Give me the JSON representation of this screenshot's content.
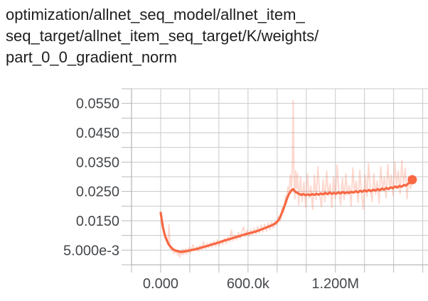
{
  "title": {
    "full": "optimization/allnet_seq_model/allnet_item_seq_target/allnet_item_seq_target/K/weights/part_0_0_gradient_norm",
    "lines": [
      "optimization/allnet_seq_model/allnet_item_",
      "seq_target/allnet_item_seq_target/K/weights/",
      "part_0_0_gradient_norm"
    ]
  },
  "colors": {
    "line": "#f76843",
    "raw_opacity": 0.25,
    "grid": "#c9c9c9",
    "axis": "#b9b9b9",
    "tick_label": "#45484c",
    "title_text": "#1e1e1e"
  },
  "chart_data": {
    "type": "line",
    "title": "optimization/allnet_seq_model/allnet_item_seq_target/allnet_item_seq_target/K/weights/part_0_0_gradient_norm",
    "xlabel": "",
    "ylabel": "",
    "x_units": "training steps (values stored in thousands)",
    "xlim_k": [
      -200,
      1836
    ],
    "ylim": [
      0,
      0.06
    ],
    "grid": {
      "x_step_k": 200,
      "y_step": 0.005,
      "visible": true
    },
    "legend": "none",
    "x_ticks": [
      {
        "step_k": 0,
        "label": "0.000"
      },
      {
        "step_k": 600,
        "label": "600.0k"
      },
      {
        "step_k": 1200,
        "label": "1.200M"
      }
    ],
    "y_ticks": [
      {
        "value": 0.005,
        "label": "5.000e-3"
      },
      {
        "value": 0.015,
        "label": "0.0150"
      },
      {
        "value": 0.025,
        "label": "0.0250"
      },
      {
        "value": 0.035,
        "label": "0.0350"
      },
      {
        "value": 0.045,
        "label": "0.0450"
      },
      {
        "value": 0.055,
        "label": "0.0550"
      }
    ],
    "final_point": {
      "step_k": 1728,
      "value": 0.029
    },
    "series": [
      {
        "name": "raw",
        "role": "unsmoothed original data",
        "opacity": 0.25,
        "width": 2,
        "points": [
          [
            0,
            0.0177
          ],
          [
            6,
            0.015
          ],
          [
            12,
            0.0131
          ],
          [
            18,
            0.0118
          ],
          [
            24,
            0.0105
          ],
          [
            30,
            0.0094
          ],
          [
            36,
            0.0088
          ],
          [
            42,
            0.0078
          ],
          [
            48,
            0.007
          ],
          [
            58,
            0.0136
          ],
          [
            64,
            0.0062
          ],
          [
            70,
            0.0052
          ],
          [
            76,
            0.0058
          ],
          [
            82,
            0.0045
          ],
          [
            88,
            0.0052
          ],
          [
            94,
            0.0038
          ],
          [
            100,
            0.005
          ],
          [
            106,
            0.0042
          ],
          [
            112,
            0.005
          ],
          [
            118,
            0.0034
          ],
          [
            124,
            0.0048
          ],
          [
            130,
            0.0026
          ],
          [
            136,
            0.0046
          ],
          [
            142,
            0.0036
          ],
          [
            148,
            0.0052
          ],
          [
            154,
            0.0034
          ],
          [
            160,
            0.005
          ],
          [
            166,
            0.004
          ],
          [
            172,
            0.0055
          ],
          [
            178,
            0.0036
          ],
          [
            184,
            0.0052
          ],
          [
            190,
            0.0042
          ],
          [
            196,
            0.0058
          ],
          [
            204,
            0.004
          ],
          [
            210,
            0.0052
          ],
          [
            222,
            0.0068
          ],
          [
            234,
            0.0048
          ],
          [
            246,
            0.0062
          ],
          [
            258,
            0.0046
          ],
          [
            270,
            0.0066
          ],
          [
            282,
            0.0052
          ],
          [
            294,
            0.0078
          ],
          [
            306,
            0.0055
          ],
          [
            318,
            0.0072
          ],
          [
            330,
            0.0058
          ],
          [
            342,
            0.0075
          ],
          [
            354,
            0.006
          ],
          [
            366,
            0.008
          ],
          [
            378,
            0.0062
          ],
          [
            390,
            0.0085
          ],
          [
            402,
            0.0065
          ],
          [
            414,
            0.0082
          ],
          [
            426,
            0.007
          ],
          [
            438,
            0.009
          ],
          [
            450,
            0.0072
          ],
          [
            462,
            0.0095
          ],
          [
            474,
            0.0078
          ],
          [
            486,
            0.0118
          ],
          [
            498,
            0.0082
          ],
          [
            510,
            0.0102
          ],
          [
            522,
            0.0085
          ],
          [
            534,
            0.011
          ],
          [
            546,
            0.009
          ],
          [
            558,
            0.0115
          ],
          [
            570,
            0.0128
          ],
          [
            582,
            0.0095
          ],
          [
            594,
            0.0118
          ],
          [
            606,
            0.0098
          ],
          [
            618,
            0.012
          ],
          [
            630,
            0.0102
          ],
          [
            642,
            0.0125
          ],
          [
            654,
            0.0105
          ],
          [
            666,
            0.013
          ],
          [
            678,
            0.0108
          ],
          [
            690,
            0.0135
          ],
          [
            702,
            0.0112
          ],
          [
            714,
            0.0138
          ],
          [
            726,
            0.0115
          ],
          [
            738,
            0.0142
          ],
          [
            750,
            0.012
          ],
          [
            762,
            0.0145
          ],
          [
            774,
            0.0125
          ],
          [
            786,
            0.0148
          ],
          [
            798,
            0.0135
          ],
          [
            810,
            0.0165
          ],
          [
            822,
            0.0148
          ],
          [
            834,
            0.0195
          ],
          [
            846,
            0.018
          ],
          [
            858,
            0.0235
          ],
          [
            866,
            0.021
          ],
          [
            874,
            0.0265
          ],
          [
            882,
            0.0245
          ],
          [
            890,
            0.0305
          ],
          [
            898,
            0.026
          ],
          [
            904,
            0.033
          ],
          [
            910,
            0.056
          ],
          [
            916,
            0.029
          ],
          [
            922,
            0.0225
          ],
          [
            928,
            0.032
          ],
          [
            934,
            0.026
          ],
          [
            940,
            0.031
          ],
          [
            948,
            0.0205
          ],
          [
            960,
            0.03
          ],
          [
            972,
            0.0215
          ],
          [
            984,
            0.0282
          ],
          [
            996,
            0.0195
          ],
          [
            1008,
            0.031
          ],
          [
            1020,
            0.0228
          ],
          [
            1032,
            0.0268
          ],
          [
            1044,
            0.0188
          ],
          [
            1056,
            0.0305
          ],
          [
            1068,
            0.0222
          ],
          [
            1080,
            0.0335
          ],
          [
            1092,
            0.024
          ],
          [
            1104,
            0.0198
          ],
          [
            1116,
            0.029
          ],
          [
            1128,
            0.0215
          ],
          [
            1140,
            0.032
          ],
          [
            1152,
            0.0235
          ],
          [
            1164,
            0.0275
          ],
          [
            1176,
            0.0195
          ],
          [
            1188,
            0.03
          ],
          [
            1200,
            0.0225
          ],
          [
            1212,
            0.034
          ],
          [
            1224,
            0.0248
          ],
          [
            1236,
            0.0205
          ],
          [
            1248,
            0.0296
          ],
          [
            1260,
            0.0222
          ],
          [
            1272,
            0.031
          ],
          [
            1284,
            0.0238
          ],
          [
            1296,
            0.027
          ],
          [
            1308,
            0.02
          ],
          [
            1320,
            0.033
          ],
          [
            1332,
            0.0245
          ],
          [
            1344,
            0.0285
          ],
          [
            1356,
            0.0212
          ],
          [
            1368,
            0.0322
          ],
          [
            1380,
            0.024
          ],
          [
            1392,
            0.019
          ],
          [
            1404,
            0.0305
          ],
          [
            1416,
            0.0232
          ],
          [
            1428,
            0.0345
          ],
          [
            1440,
            0.0255
          ],
          [
            1452,
            0.0215
          ],
          [
            1464,
            0.031
          ],
          [
            1476,
            0.024
          ],
          [
            1488,
            0.0286
          ],
          [
            1500,
            0.021
          ],
          [
            1512,
            0.0335
          ],
          [
            1524,
            0.0252
          ],
          [
            1536,
            0.03
          ],
          [
            1548,
            0.0228
          ],
          [
            1560,
            0.0342
          ],
          [
            1572,
            0.0262
          ],
          [
            1584,
            0.0305
          ],
          [
            1596,
            0.0235
          ],
          [
            1608,
            0.035
          ],
          [
            1620,
            0.0268
          ],
          [
            1632,
            0.032
          ],
          [
            1644,
            0.0242
          ],
          [
            1656,
            0.0355
          ],
          [
            1668,
            0.0275
          ],
          [
            1680,
            0.033
          ],
          [
            1692,
            0.0225
          ],
          [
            1704,
            0.0302
          ],
          [
            1716,
            0.026
          ],
          [
            1728,
            0.029
          ]
        ]
      },
      {
        "name": "smoothed",
        "role": "smoothed trend",
        "opacity": 1,
        "width": 3.2,
        "points": [
          [
            0,
            0.0177
          ],
          [
            8,
            0.0152
          ],
          [
            16,
            0.0128
          ],
          [
            24,
            0.011
          ],
          [
            32,
            0.0096
          ],
          [
            40,
            0.0086
          ],
          [
            55,
            0.007
          ],
          [
            70,
            0.006
          ],
          [
            85,
            0.0053
          ],
          [
            100,
            0.0049
          ],
          [
            120,
            0.0046
          ],
          [
            140,
            0.0044
          ],
          [
            160,
            0.0045
          ],
          [
            180,
            0.0047
          ],
          [
            200,
            0.0049
          ],
          [
            230,
            0.0052
          ],
          [
            260,
            0.0056
          ],
          [
            290,
            0.006
          ],
          [
            320,
            0.0064
          ],
          [
            350,
            0.0069
          ],
          [
            380,
            0.0073
          ],
          [
            410,
            0.0078
          ],
          [
            440,
            0.0083
          ],
          [
            470,
            0.0087
          ],
          [
            500,
            0.0092
          ],
          [
            530,
            0.0096
          ],
          [
            560,
            0.0101
          ],
          [
            590,
            0.0105
          ],
          [
            620,
            0.0109
          ],
          [
            650,
            0.0113
          ],
          [
            680,
            0.0118
          ],
          [
            710,
            0.0124
          ],
          [
            740,
            0.013
          ],
          [
            770,
            0.0136
          ],
          [
            790,
            0.0142
          ],
          [
            805,
            0.0149
          ],
          [
            820,
            0.0162
          ],
          [
            835,
            0.018
          ],
          [
            850,
            0.02
          ],
          [
            865,
            0.0222
          ],
          [
            880,
            0.024
          ],
          [
            895,
            0.0252
          ],
          [
            910,
            0.0258
          ],
          [
            920,
            0.0251
          ],
          [
            935,
            0.0246
          ],
          [
            950,
            0.0242
          ],
          [
            965,
            0.0238
          ],
          [
            980,
            0.0241
          ],
          [
            995,
            0.0237
          ],
          [
            1010,
            0.024
          ],
          [
            1025,
            0.0237
          ],
          [
            1040,
            0.0241
          ],
          [
            1055,
            0.0238
          ],
          [
            1070,
            0.0242
          ],
          [
            1085,
            0.0239
          ],
          [
            1100,
            0.0243
          ],
          [
            1115,
            0.024
          ],
          [
            1130,
            0.0245
          ],
          [
            1145,
            0.0241
          ],
          [
            1160,
            0.0246
          ],
          [
            1175,
            0.0242
          ],
          [
            1190,
            0.0245
          ],
          [
            1205,
            0.0242
          ],
          [
            1220,
            0.0247
          ],
          [
            1235,
            0.0243
          ],
          [
            1250,
            0.0248
          ],
          [
            1265,
            0.0244
          ],
          [
            1280,
            0.0247
          ],
          [
            1295,
            0.0245
          ],
          [
            1310,
            0.0249
          ],
          [
            1325,
            0.0246
          ],
          [
            1340,
            0.0251
          ],
          [
            1355,
            0.0247
          ],
          [
            1370,
            0.0252
          ],
          [
            1385,
            0.0249
          ],
          [
            1400,
            0.0254
          ],
          [
            1415,
            0.025
          ],
          [
            1430,
            0.0255
          ],
          [
            1445,
            0.0251
          ],
          [
            1460,
            0.0256
          ],
          [
            1475,
            0.0253
          ],
          [
            1490,
            0.0258
          ],
          [
            1505,
            0.0254
          ],
          [
            1520,
            0.026
          ],
          [
            1535,
            0.0256
          ],
          [
            1550,
            0.0262
          ],
          [
            1565,
            0.0258
          ],
          [
            1580,
            0.0264
          ],
          [
            1595,
            0.0261
          ],
          [
            1610,
            0.0267
          ],
          [
            1625,
            0.0263
          ],
          [
            1640,
            0.0269
          ],
          [
            1655,
            0.0266
          ],
          [
            1670,
            0.0272
          ],
          [
            1685,
            0.027
          ],
          [
            1700,
            0.0277
          ],
          [
            1714,
            0.0281
          ],
          [
            1728,
            0.029
          ]
        ]
      }
    ]
  }
}
